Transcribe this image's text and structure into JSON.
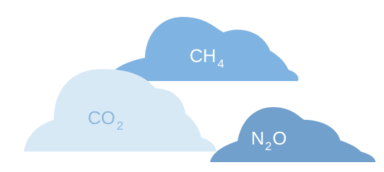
{
  "nodes": [
    {
      "label_parts": [
        "CH",
        "4"
      ]
    },
    {
      "label_parts": [
        "CO",
        "2"
      ]
    },
    {
      "label_parts": [
        "N",
        "2",
        "O"
      ]
    }
  ]
}
